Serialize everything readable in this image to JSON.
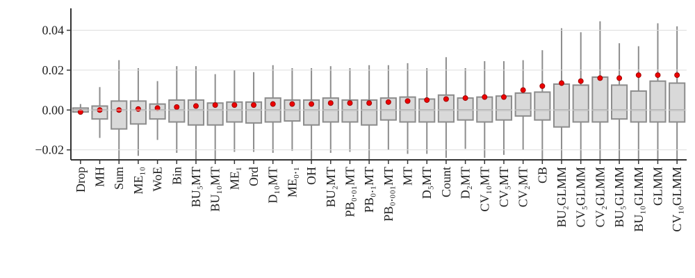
{
  "chart_data": {
    "type": "box",
    "categories": [
      "Drop",
      "MH",
      "Sum",
      "ME₁₀",
      "WoE",
      "Bin",
      "BU₅MT",
      "BU₁₀MT",
      "ME₁",
      "Ord",
      "D₁₀MT",
      "ME₀.₁",
      "OH",
      "BU₂MT",
      "PB₀.₀₁MT",
      "PB₀.₁MT",
      "PB₀.₀₀₁MT",
      "MT",
      "D₅MT",
      "Count",
      "D₂MT",
      "CV₁₀MT",
      "CV₅MT",
      "CV₂MT",
      "CB",
      "BU₂GLMM",
      "CV₅GLMM",
      "CV₂GLMM",
      "BU₅GLMM",
      "BU₁₀GLMM",
      "GLMM",
      "CV₁₀GLMM"
    ],
    "whislo": [
      -0.002,
      -0.014,
      -0.028,
      -0.023,
      -0.015,
      -0.0215,
      -0.028,
      -0.028,
      -0.021,
      -0.021,
      -0.0215,
      -0.0205,
      -0.028,
      -0.0215,
      -0.021,
      -0.028,
      -0.02,
      -0.022,
      -0.022,
      -0.024,
      -0.0195,
      -0.024,
      -0.0225,
      -0.02,
      -0.028,
      -0.028,
      -0.028,
      -0.028,
      -0.028,
      -0.028,
      -0.028,
      -0.028
    ],
    "q1": [
      -0.001,
      -0.0045,
      -0.0095,
      -0.007,
      -0.0045,
      -0.006,
      -0.0075,
      -0.0075,
      -0.006,
      -0.0065,
      -0.006,
      -0.0055,
      -0.0075,
      -0.006,
      -0.006,
      -0.0075,
      -0.005,
      -0.006,
      -0.006,
      -0.006,
      -0.005,
      -0.006,
      -0.005,
      -0.003,
      -0.005,
      -0.0085,
      -0.006,
      -0.006,
      -0.0045,
      -0.006,
      -0.006,
      -0.006
    ],
    "median": [
      0,
      0,
      0,
      0,
      0,
      0,
      0,
      0,
      0,
      0,
      0,
      0,
      0,
      0,
      0,
      0,
      0,
      0,
      0,
      0,
      0,
      0,
      0,
      0,
      0,
      0,
      0,
      0,
      0,
      0,
      0,
      0
    ],
    "q3": [
      0.001,
      0.002,
      0.0045,
      0.0045,
      0.003,
      0.005,
      0.005,
      0.0035,
      0.004,
      0.004,
      0.006,
      0.005,
      0.005,
      0.006,
      0.005,
      0.005,
      0.006,
      0.0065,
      0.0055,
      0.0075,
      0.006,
      0.0065,
      0.007,
      0.0085,
      0.009,
      0.013,
      0.0125,
      0.0165,
      0.0125,
      0.0095,
      0.0145,
      0.0135
    ],
    "whishi": [
      0.003,
      0.0115,
      0.025,
      0.021,
      0.0145,
      0.022,
      0.022,
      0.018,
      0.02,
      0.019,
      0.0225,
      0.021,
      0.021,
      0.022,
      0.021,
      0.0225,
      0.0225,
      0.0235,
      0.021,
      0.0265,
      0.021,
      0.0245,
      0.0245,
      0.025,
      0.03,
      0.041,
      0.039,
      0.0445,
      0.0335,
      0.032,
      0.0435,
      0.042
    ],
    "means": [
      -0.001,
      0,
      0,
      0.0005,
      0.001,
      0.0015,
      0.002,
      0.0025,
      0.0025,
      0.0025,
      0.003,
      0.003,
      0.003,
      0.0035,
      0.0035,
      0.0035,
      0.004,
      0.0045,
      0.005,
      0.0055,
      0.006,
      0.0065,
      0.0065,
      0.01,
      0.012,
      0.0135,
      0.0145,
      0.016,
      0.016,
      0.0175,
      0.0175,
      0.0175
    ],
    "box_color": "#d9d9d9",
    "edge_color": "#8c8c8c",
    "mean_color": "#ee0000",
    "ylim": [
      -0.025,
      0.051
    ],
    "yticks": [
      {
        "value": -0.02,
        "label": "−0.02"
      },
      {
        "value": 0,
        "label": "0.00"
      },
      {
        "value": 0.02,
        "label": "0.02"
      },
      {
        "value": 0.04,
        "label": "0.04"
      }
    ],
    "grid": true
  }
}
